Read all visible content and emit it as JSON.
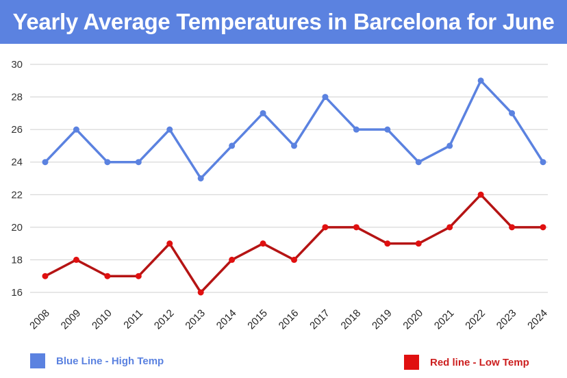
{
  "chart_data": {
    "type": "line",
    "title": "Yearly Average Temperatures in Barcelona for June",
    "xlabel": "",
    "ylabel": "",
    "categories": [
      "2008",
      "2009",
      "2010",
      "2011",
      "2012",
      "2013",
      "2014",
      "2015",
      "2016",
      "2017",
      "2018",
      "2019",
      "2020",
      "2021",
      "2022",
      "2023",
      "2024"
    ],
    "ylim": [
      16,
      30
    ],
    "yticks": [
      16,
      18,
      20,
      22,
      24,
      26,
      28,
      30
    ],
    "grid": true,
    "series": [
      {
        "name": "Blue Line - High Temp",
        "color": "#5b82e0",
        "values": [
          24,
          26,
          24,
          24,
          26,
          23,
          25,
          27,
          25,
          28,
          26,
          26,
          24,
          25,
          29,
          27,
          24
        ]
      },
      {
        "name": "Red line - Low Temp",
        "color": "#d21414",
        "values": [
          17,
          18,
          17,
          17,
          19,
          16,
          18,
          19,
          18,
          20,
          20,
          19,
          19,
          20,
          22,
          20,
          20
        ]
      }
    ],
    "legend_position": "bottom"
  }
}
